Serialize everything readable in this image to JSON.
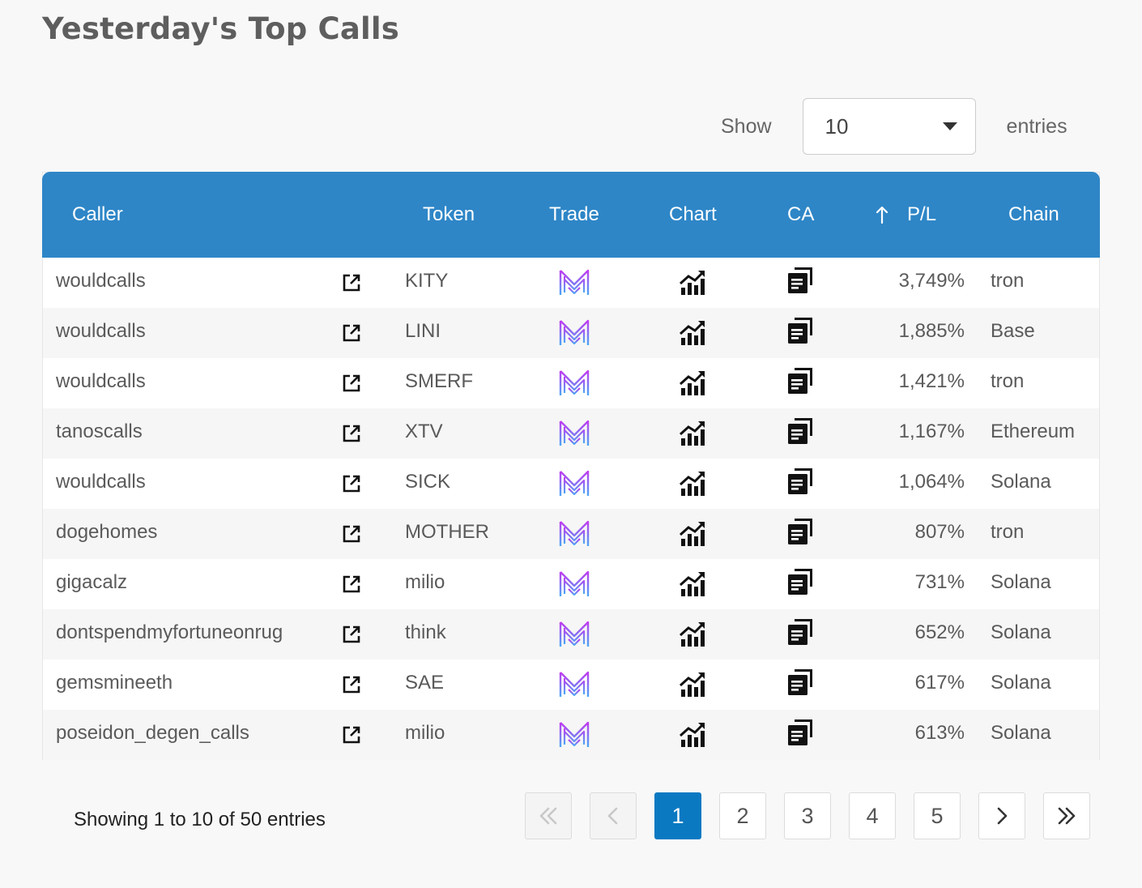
{
  "page": {
    "title": "Yesterday's Top Calls"
  },
  "length_menu": {
    "show_label": "Show",
    "selected": "10",
    "entries_label": "entries"
  },
  "table": {
    "columns": {
      "caller": "Caller",
      "token": "Token",
      "trade": "Trade",
      "chart": "Chart",
      "ca": "CA",
      "pl": "P/L",
      "chain": "Chain"
    },
    "sort_icon": "arrow-up-icon",
    "rows": [
      {
        "caller": "wouldcalls",
        "token": "KITY",
        "pl": "3,749%",
        "chain": "tron"
      },
      {
        "caller": "wouldcalls",
        "token": "LINI",
        "pl": "1,885%",
        "chain": "Base"
      },
      {
        "caller": "wouldcalls",
        "token": "SMERF",
        "pl": "1,421%",
        "chain": "tron"
      },
      {
        "caller": "tanoscalls",
        "token": "XTV",
        "pl": "1,167%",
        "chain": "Ethereum"
      },
      {
        "caller": "wouldcalls",
        "token": "SICK",
        "pl": "1,064%",
        "chain": "Solana"
      },
      {
        "caller": "dogehomes",
        "token": "MOTHER",
        "pl": "807%",
        "chain": "tron"
      },
      {
        "caller": "gigacalz",
        "token": "milio",
        "pl": "731%",
        "chain": "Solana"
      },
      {
        "caller": "dontspendmyfortuneonrug",
        "token": "think",
        "pl": "652%",
        "chain": "Solana"
      },
      {
        "caller": "gemsmineeth",
        "token": "SAE",
        "pl": "617%",
        "chain": "Solana"
      },
      {
        "caller": "poseidon_degen_calls",
        "token": "milio",
        "pl": "613%",
        "chain": "Solana"
      }
    ]
  },
  "footer": {
    "info": "Showing 1 to 10 of 50 entries",
    "pages": [
      "1",
      "2",
      "3",
      "4",
      "5"
    ],
    "current_page": "1"
  },
  "colors": {
    "header_bg": "#2e86c7",
    "active_page": "#0a79c2",
    "trade_icon_gradient": [
      "#c13bf0",
      "#4aa8f5"
    ]
  }
}
